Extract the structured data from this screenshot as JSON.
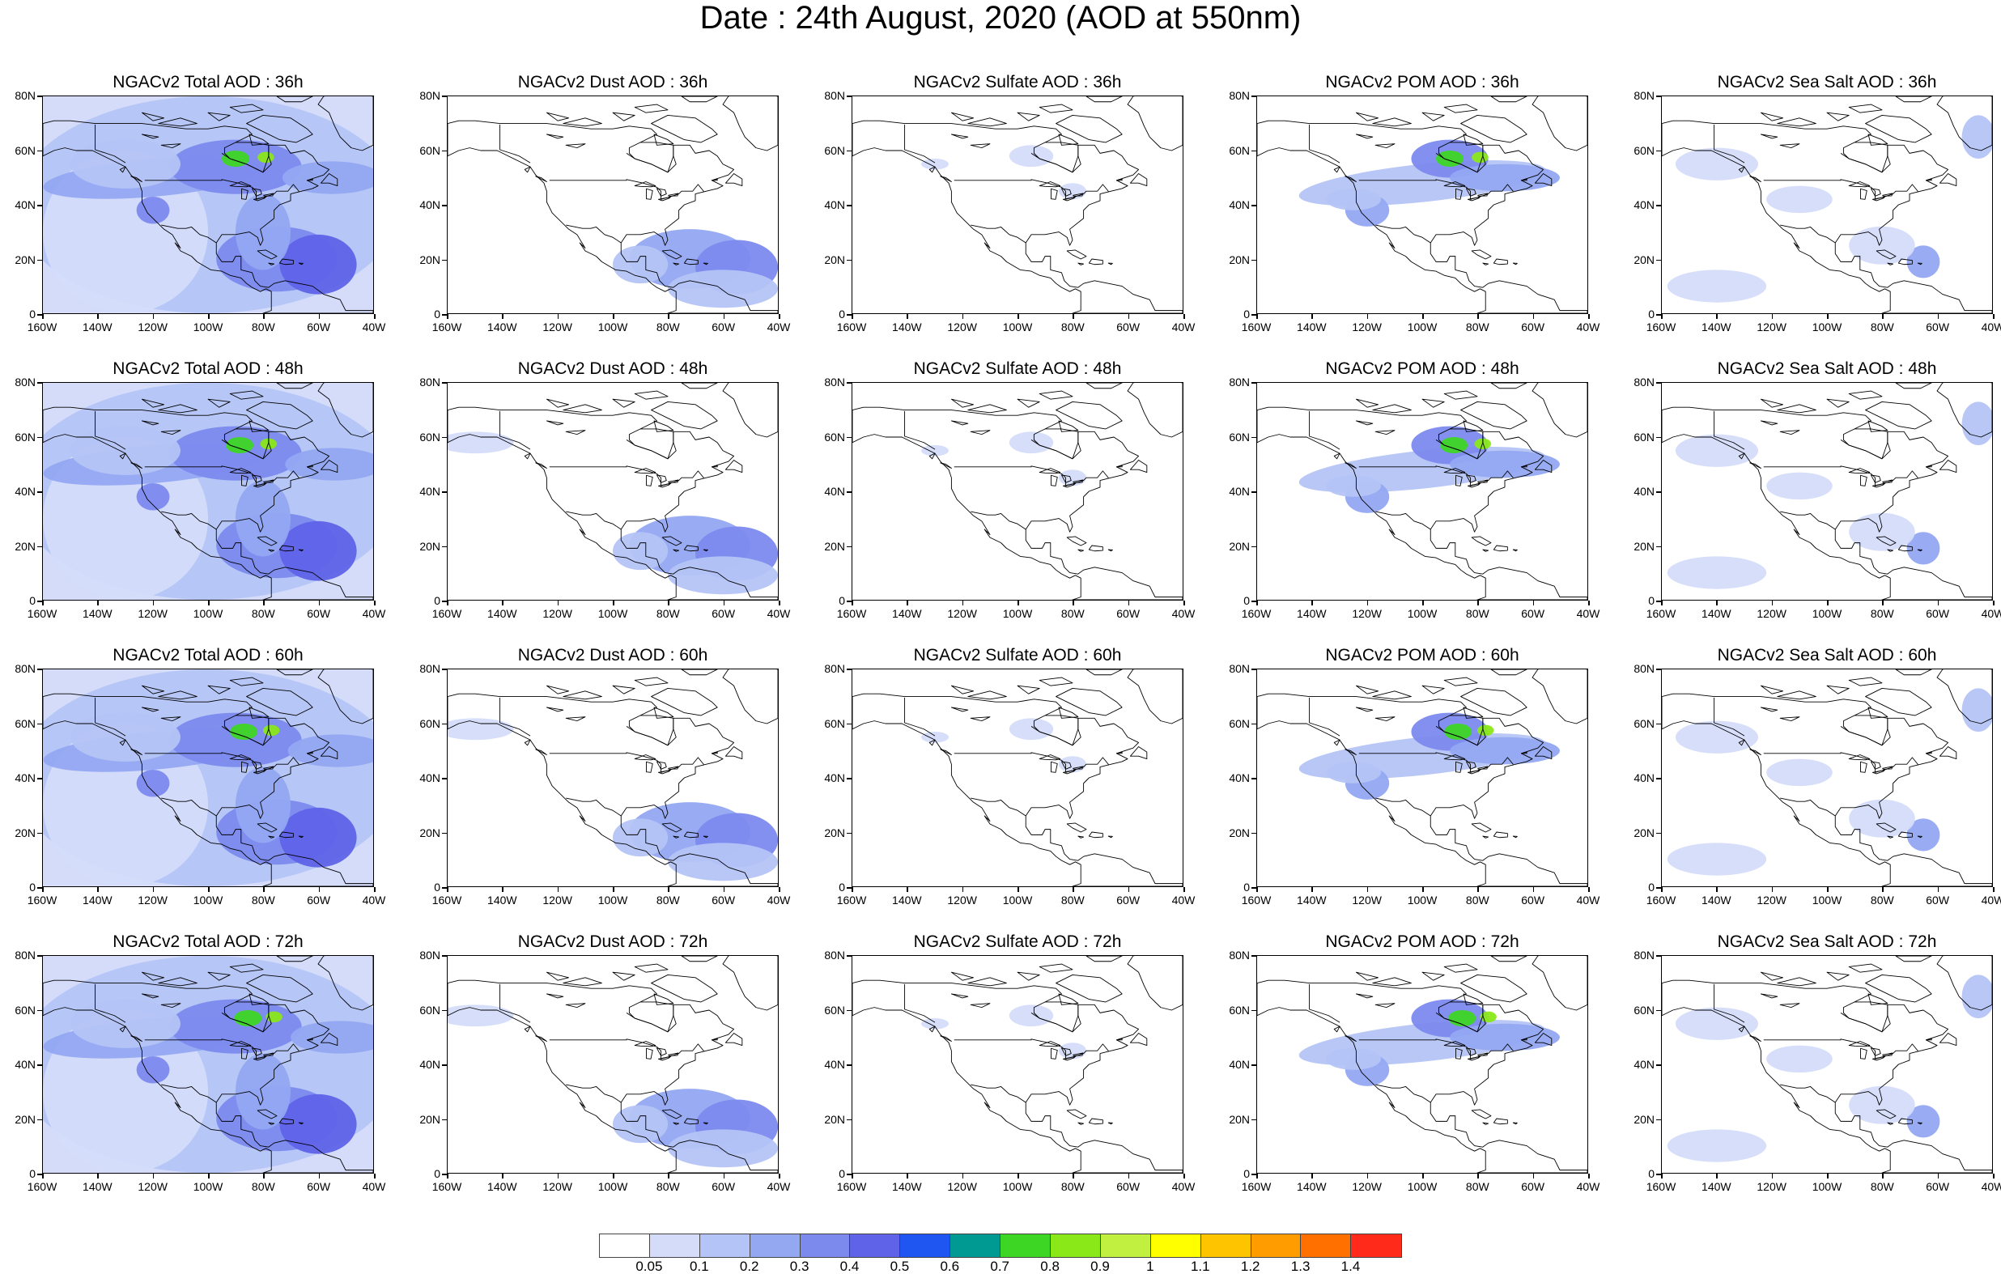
{
  "title": "Date : 24th August, 2020 (AOD at 550nm)",
  "y_axis_labels": [
    "80N",
    "60N",
    "40N",
    "20N",
    "0"
  ],
  "x_axis_labels": [
    "160W",
    "140W",
    "120W",
    "100W",
    "80W",
    "60W",
    "40W"
  ],
  "panels": [
    {
      "title": "NGACv2 Total AOD : 36h",
      "species": "total",
      "hour": 36
    },
    {
      "title": "NGACv2 Dust AOD : 36h",
      "species": "dust",
      "hour": 36
    },
    {
      "title": "NGACv2 Sulfate AOD : 36h",
      "species": "sulfate",
      "hour": 36
    },
    {
      "title": "NGACv2 POM AOD : 36h",
      "species": "pom",
      "hour": 36
    },
    {
      "title": "NGACv2 Sea Salt AOD : 36h",
      "species": "seasalt",
      "hour": 36
    },
    {
      "title": "NGACv2 Total AOD : 48h",
      "species": "total",
      "hour": 48
    },
    {
      "title": "NGACv2 Dust AOD : 48h",
      "species": "dust",
      "hour": 48
    },
    {
      "title": "NGACv2 Sulfate AOD : 48h",
      "species": "sulfate",
      "hour": 48
    },
    {
      "title": "NGACv2 POM AOD : 48h",
      "species": "pom",
      "hour": 48
    },
    {
      "title": "NGACv2 Sea Salt AOD : 48h",
      "species": "seasalt",
      "hour": 48
    },
    {
      "title": "NGACv2 Total AOD : 60h",
      "species": "total",
      "hour": 60
    },
    {
      "title": "NGACv2 Dust AOD : 60h",
      "species": "dust",
      "hour": 60
    },
    {
      "title": "NGACv2 Sulfate AOD : 60h",
      "species": "sulfate",
      "hour": 60
    },
    {
      "title": "NGACv2 POM AOD : 60h",
      "species": "pom",
      "hour": 60
    },
    {
      "title": "NGACv2 Sea Salt AOD : 60h",
      "species": "seasalt",
      "hour": 60
    },
    {
      "title": "NGACv2 Total AOD : 72h",
      "species": "total",
      "hour": 72
    },
    {
      "title": "NGACv2 Dust AOD : 72h",
      "species": "dust",
      "hour": 72
    },
    {
      "title": "NGACv2 Sulfate AOD : 72h",
      "species": "sulfate",
      "hour": 72
    },
    {
      "title": "NGACv2 POM AOD : 72h",
      "species": "pom",
      "hour": 72
    },
    {
      "title": "NGACv2 Sea Salt  AOD : 72h",
      "species": "seasalt",
      "hour": 72
    }
  ],
  "colorbar": {
    "labels": [
      "0.05",
      "0.1",
      "0.2",
      "0.3",
      "0.4",
      "0.5",
      "0.6",
      "0.7",
      "0.8",
      "0.9",
      "1",
      "1.1",
      "1.2",
      "1.3",
      "1.4"
    ],
    "colors": [
      "#ffffff",
      "#d4dcfa",
      "#b4c4f6",
      "#94a8f2",
      "#7c8aee",
      "#5f63e8",
      "#1f55f0",
      "#009a92",
      "#3ed624",
      "#8ae818",
      "#c2f040",
      "#ffff00",
      "#ffc400",
      "#ff9c00",
      "#ff7000",
      "#ff2a1a"
    ]
  },
  "map_layers": {
    "total": {
      "level": "high",
      "land_color": "#c9d3f8"
    },
    "dust": {
      "level": "tropical-plume"
    },
    "sulfate": {
      "level": "low"
    },
    "pom": {
      "level": "smoke-plume"
    },
    "seasalt": {
      "level": "ocean-low"
    }
  }
}
